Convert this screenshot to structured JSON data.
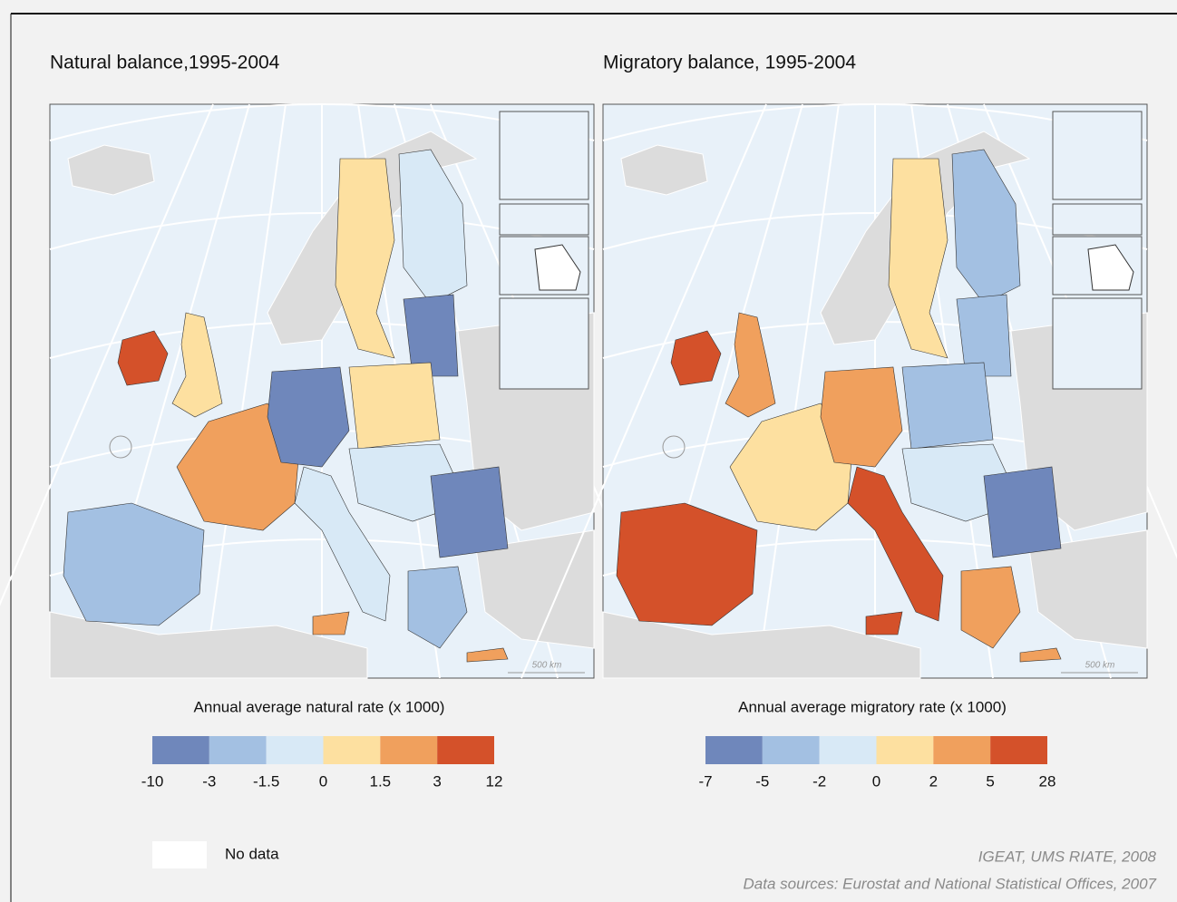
{
  "maps": [
    {
      "title": "Natural balance,1995-2004",
      "legend": {
        "title": "Annual average natural rate (x 1000)",
        "ticks": [
          -10,
          -3,
          -1.5,
          0,
          1.5,
          3,
          12
        ],
        "colors": [
          "#6f87bb",
          "#a3c0e2",
          "#d8e9f6",
          "#fde0a0",
          "#f0a05d",
          "#d4512a"
        ]
      },
      "scale_label": "500 km"
    },
    {
      "title": "Migratory balance, 1995-2004",
      "legend": {
        "title": "Annual average migratory rate (x 1000)",
        "ticks": [
          -7,
          -5,
          -2,
          0,
          2,
          5,
          28
        ],
        "colors": [
          "#6f87bb",
          "#a3c0e2",
          "#d8e9f6",
          "#fde0a0",
          "#f0a05d",
          "#d4512a"
        ]
      },
      "scale_label": "500 km"
    }
  ],
  "no_data": {
    "label": "No data",
    "color": "#ffffff"
  },
  "credits": [
    "IGEAT, UMS RIATE, 2008",
    "Data sources: Eurostat and National Statistical Offices, 2007"
  ]
}
